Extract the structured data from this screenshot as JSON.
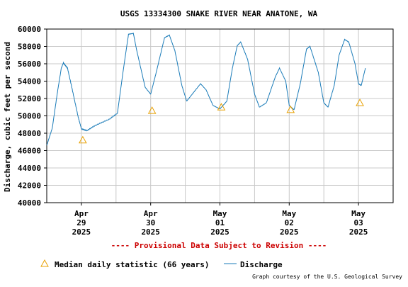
{
  "chart_data": {
    "type": "line",
    "title": "USGS 13334300 SNAKE RIVER NEAR ANATONE, WA",
    "ylabel": "Discharge, cubic feet per second",
    "xlabel": "",
    "ylim": [
      40000,
      60000
    ],
    "y_ticks": [
      40000,
      42000,
      44000,
      46000,
      48000,
      50000,
      52000,
      54000,
      56000,
      58000,
      60000
    ],
    "xlim_days": [
      -0.5,
      4.5
    ],
    "x_ticks": [
      {
        "day": 0,
        "month": "Apr",
        "date": "29",
        "year": "2025"
      },
      {
        "day": 1,
        "month": "Apr",
        "date": "30",
        "year": "2025"
      },
      {
        "day": 2,
        "month": "May",
        "date": "01",
        "year": "2025"
      },
      {
        "day": 3,
        "month": "May",
        "date": "02",
        "year": "2025"
      },
      {
        "day": 4,
        "month": "May",
        "date": "03",
        "year": "2025"
      }
    ],
    "grid": true,
    "series": [
      {
        "name": "Discharge",
        "color": "#1a7bb8",
        "points": [
          [
            -0.5,
            46600
          ],
          [
            -0.42,
            48600
          ],
          [
            -0.35,
            52500
          ],
          [
            -0.29,
            55500
          ],
          [
            -0.26,
            56100
          ],
          [
            -0.2,
            55500
          ],
          [
            -0.12,
            52600
          ],
          [
            -0.05,
            50000
          ],
          [
            0.0,
            48500
          ],
          [
            0.08,
            48300
          ],
          [
            0.2,
            48900
          ],
          [
            0.4,
            49600
          ],
          [
            0.52,
            50300
          ],
          [
            0.6,
            55000
          ],
          [
            0.68,
            59400
          ],
          [
            0.75,
            59500
          ],
          [
            0.8,
            57500
          ],
          [
            0.92,
            53300
          ],
          [
            1.0,
            52500
          ],
          [
            1.08,
            55000
          ],
          [
            1.2,
            59000
          ],
          [
            1.27,
            59300
          ],
          [
            1.35,
            57500
          ],
          [
            1.45,
            53500
          ],
          [
            1.52,
            51700
          ],
          [
            1.6,
            52500
          ],
          [
            1.72,
            53700
          ],
          [
            1.8,
            53000
          ],
          [
            1.9,
            51200
          ],
          [
            2.0,
            50800
          ],
          [
            2.1,
            51700
          ],
          [
            2.18,
            55500
          ],
          [
            2.25,
            58100
          ],
          [
            2.3,
            58500
          ],
          [
            2.4,
            56500
          ],
          [
            2.5,
            52500
          ],
          [
            2.57,
            51000
          ],
          [
            2.67,
            51500
          ],
          [
            2.8,
            54500
          ],
          [
            2.86,
            55500
          ],
          [
            2.95,
            54000
          ],
          [
            3.0,
            51200
          ],
          [
            3.07,
            50700
          ],
          [
            3.16,
            53700
          ],
          [
            3.25,
            57700
          ],
          [
            3.3,
            58000
          ],
          [
            3.42,
            55000
          ],
          [
            3.5,
            51500
          ],
          [
            3.56,
            51000
          ],
          [
            3.65,
            53500
          ],
          [
            3.72,
            57000
          ],
          [
            3.8,
            58800
          ],
          [
            3.86,
            58500
          ],
          [
            3.95,
            56000
          ],
          [
            4.0,
            53700
          ],
          [
            4.04,
            53500
          ],
          [
            4.1,
            55500
          ]
        ]
      }
    ],
    "markers": {
      "name": "Median daily statistic (66 years)",
      "color": "#e8a000",
      "points": [
        [
          0.02,
          47200
        ],
        [
          1.02,
          50600
        ],
        [
          2.02,
          51000
        ],
        [
          3.02,
          50700
        ],
        [
          4.02,
          51500
        ]
      ]
    },
    "provisional_note": "---- Provisional Data Subject to Revision ----",
    "legend": [
      {
        "label": "Median daily statistic (66 years)"
      },
      {
        "label": "Discharge"
      }
    ],
    "credit": "Graph courtesy of the U.S. Geological Survey"
  }
}
